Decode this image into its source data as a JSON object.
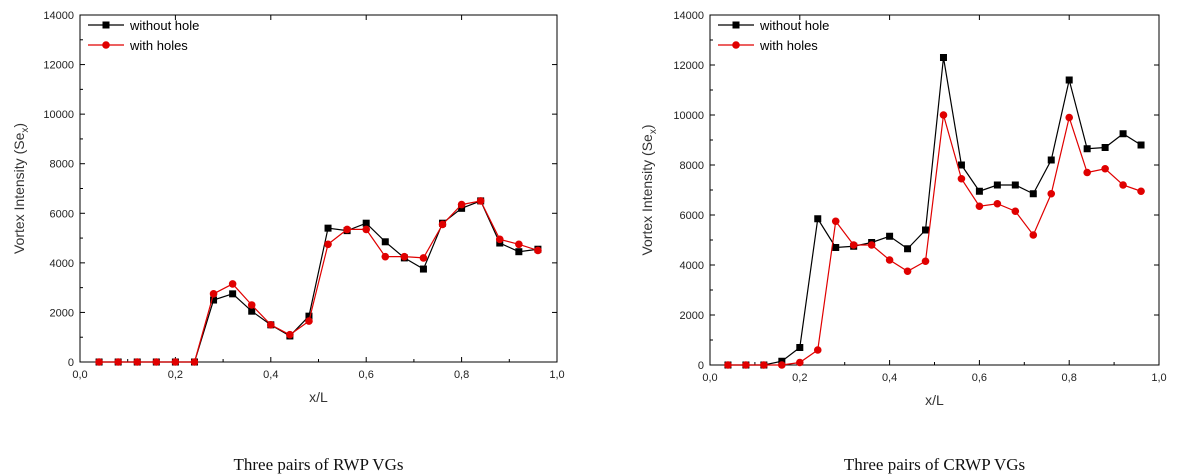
{
  "chart_data": [
    {
      "type": "line",
      "caption": "Three pairs of RWP VGs",
      "xlabel": "x/L",
      "ylabel_main": "Vortex Intensity (Se",
      "ylabel_sub": "x",
      "ylabel_end": ")",
      "xlim": [
        0,
        1
      ],
      "ylim": [
        0,
        14000
      ],
      "x_ticks": [
        0,
        0.2,
        0.4,
        0.6,
        0.8,
        1.0
      ],
      "x_tick_labels": [
        "0,0",
        "0,2",
        "0,4",
        "0,6",
        "0,8",
        "1,0"
      ],
      "y_ticks": [
        0,
        2000,
        4000,
        6000,
        8000,
        10000,
        12000,
        14000
      ],
      "y_tick_labels": [
        "0",
        "2000",
        "4000",
        "6000",
        "8000",
        "10000",
        "12000",
        "14000"
      ],
      "legend_position": "top-left",
      "x": [
        0.04,
        0.08,
        0.12,
        0.16,
        0.2,
        0.24,
        0.28,
        0.32,
        0.36,
        0.4,
        0.44,
        0.48,
        0.52,
        0.56,
        0.6,
        0.64,
        0.68,
        0.72,
        0.76,
        0.8,
        0.84,
        0.88,
        0.92,
        0.96
      ],
      "series": [
        {
          "name": "without hole",
          "color": "#000000",
          "marker": "square",
          "values": [
            0,
            0,
            0,
            0,
            0,
            0,
            2500,
            2750,
            2050,
            1500,
            1050,
            1850,
            5400,
            5300,
            5600,
            4850,
            4200,
            3750,
            5600,
            6200,
            6500,
            4800,
            4450,
            4550
          ]
        },
        {
          "name": "with holes",
          "color": "#e00000",
          "marker": "circle",
          "values": [
            0,
            0,
            0,
            0,
            0,
            0,
            2750,
            3150,
            2300,
            1500,
            1100,
            1650,
            4750,
            5350,
            5350,
            4250,
            4250,
            4200,
            5550,
            6350,
            6500,
            4950,
            4750,
            4500
          ]
        }
      ]
    },
    {
      "type": "line",
      "caption": "Three pairs of CRWP VGs",
      "xlabel": "x/L",
      "ylabel_main": "Vortex Intensity (Se",
      "ylabel_sub": "x",
      "ylabel_end": ")",
      "xlim": [
        0,
        1
      ],
      "ylim": [
        0,
        14000
      ],
      "x_ticks": [
        0,
        0.2,
        0.4,
        0.6,
        0.8,
        1.0
      ],
      "x_tick_labels": [
        "0,0",
        "0,2",
        "0,4",
        "0,6",
        "0,8",
        "1,0"
      ],
      "y_ticks": [
        0,
        2000,
        4000,
        6000,
        8000,
        10000,
        12000,
        14000
      ],
      "y_tick_labels": [
        "0",
        "2000",
        "4000",
        "6000",
        "8000",
        "10000",
        "12000",
        "14000"
      ],
      "legend_position": "top-left",
      "x": [
        0.04,
        0.08,
        0.12,
        0.16,
        0.2,
        0.24,
        0.28,
        0.32,
        0.36,
        0.4,
        0.44,
        0.48,
        0.52,
        0.56,
        0.6,
        0.64,
        0.68,
        0.72,
        0.76,
        0.8,
        0.84,
        0.88,
        0.92,
        0.96
      ],
      "series": [
        {
          "name": "without hole",
          "color": "#000000",
          "marker": "square",
          "values": [
            0,
            0,
            0,
            150,
            700,
            5850,
            4700,
            4750,
            4900,
            5150,
            4650,
            5400,
            12300,
            8000,
            6950,
            7200,
            7200,
            6850,
            8200,
            11400,
            8650,
            8700,
            9250,
            8800
          ]
        },
        {
          "name": "with holes",
          "color": "#e00000",
          "marker": "circle",
          "values": [
            0,
            0,
            0,
            0,
            100,
            600,
            5750,
            4800,
            4800,
            4200,
            3750,
            4150,
            10000,
            7450,
            6350,
            6450,
            6150,
            5200,
            6850,
            9900,
            7700,
            7850,
            7200,
            6950
          ]
        }
      ]
    }
  ]
}
